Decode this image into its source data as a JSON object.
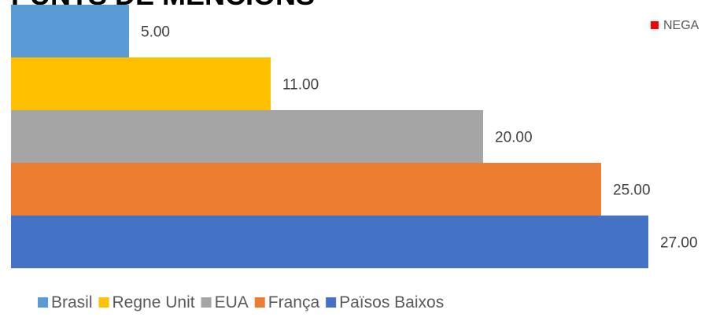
{
  "chart_data": {
    "type": "bar",
    "orientation": "horizontal",
    "title": "PUNTS DE MENCIONS",
    "xlim": [
      0,
      29
    ],
    "series": [
      {
        "name": "Brasil",
        "color": "#5b9bd5",
        "values": [
          5
        ],
        "value_labels": [
          "5.00"
        ]
      },
      {
        "name": "Regne Unit",
        "color": "#ffc000",
        "values": [
          11
        ],
        "value_labels": [
          "11.00"
        ]
      },
      {
        "name": "EUA",
        "color": "#a5a5a5",
        "values": [
          20
        ],
        "value_labels": [
          "20.00"
        ]
      },
      {
        "name": "França",
        "color": "#ed7d31",
        "values": [
          25
        ],
        "value_labels": [
          "25.00"
        ]
      },
      {
        "name": "Països Baixos",
        "color": "#4472c4",
        "values": [
          27
        ],
        "value_labels": [
          "27.00"
        ]
      }
    ],
    "extra_legend": {
      "name": "NEGA",
      "color": "#ff0000"
    }
  }
}
